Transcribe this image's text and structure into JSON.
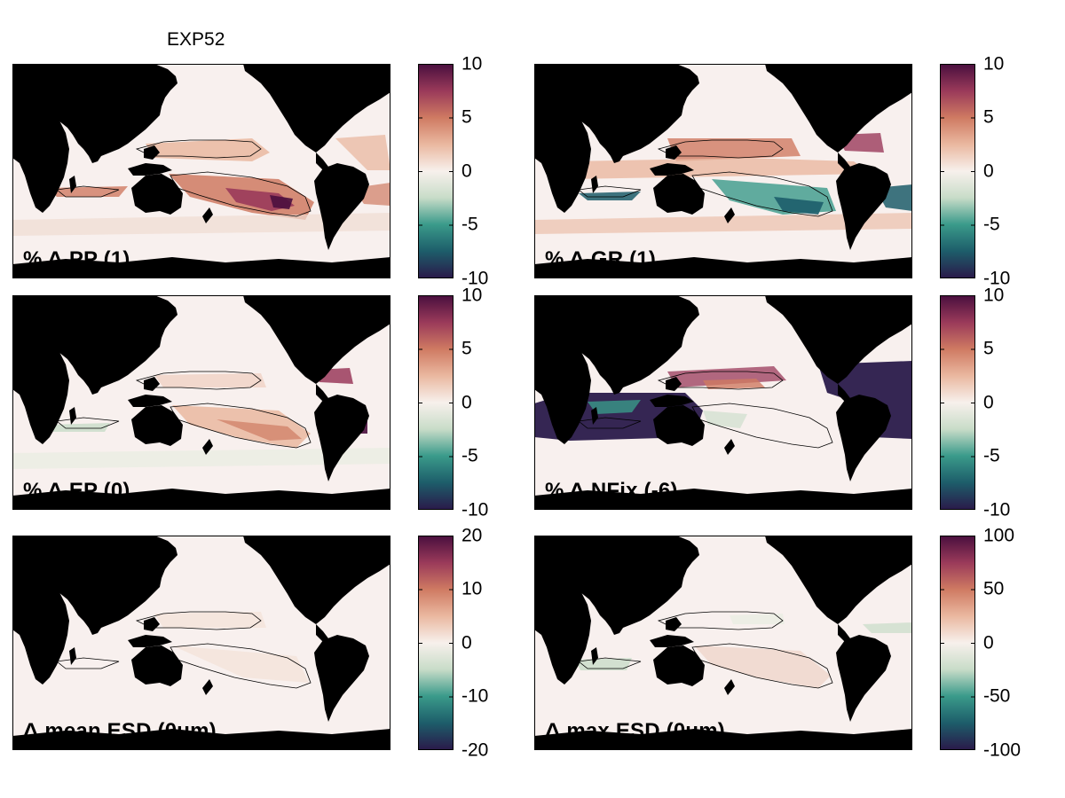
{
  "figure_title": "EXP52",
  "colormap": [
    "#2a1a4a",
    "#1d5d6a",
    "#3a9a8a",
    "#c8dcc8",
    "#f7f0ec",
    "#eab8a0",
    "#cf7a62",
    "#9a3a5a",
    "#4a0f3e"
  ],
  "land_color": "#000000",
  "ocean_base_color": "#f8f0ee",
  "panels": [
    {
      "id": "pp",
      "label": "% Δ PP (1)",
      "cbar_ticks": [
        "10",
        "5",
        "0",
        "-5",
        "-10"
      ],
      "cbar_range": [
        -10,
        10
      ]
    },
    {
      "id": "gr",
      "label": "% Δ GR (1)",
      "cbar_ticks": [
        "10",
        "5",
        "0",
        "-5",
        "-10"
      ],
      "cbar_range": [
        -10,
        10
      ]
    },
    {
      "id": "ep",
      "label": "% Δ EP (0)",
      "cbar_ticks": [
        "10",
        "5",
        "0",
        "-5",
        "-10"
      ],
      "cbar_range": [
        -10,
        10
      ]
    },
    {
      "id": "nfix",
      "label": "% Δ NFix (-6)",
      "cbar_ticks": [
        "10",
        "5",
        "0",
        "-5",
        "-10"
      ],
      "cbar_range": [
        -10,
        10
      ]
    },
    {
      "id": "mean_esd",
      "label": "Δ mean ESD (0um)",
      "cbar_ticks": [
        "20",
        "10",
        "0",
        "-10",
        "-20"
      ],
      "cbar_range": [
        -20,
        20
      ]
    },
    {
      "id": "max_esd",
      "label": "Δ max ESD (0um)",
      "cbar_ticks": [
        "100",
        "50",
        "0",
        "-50",
        "-100"
      ],
      "cbar_range": [
        -100,
        100
      ]
    }
  ]
}
